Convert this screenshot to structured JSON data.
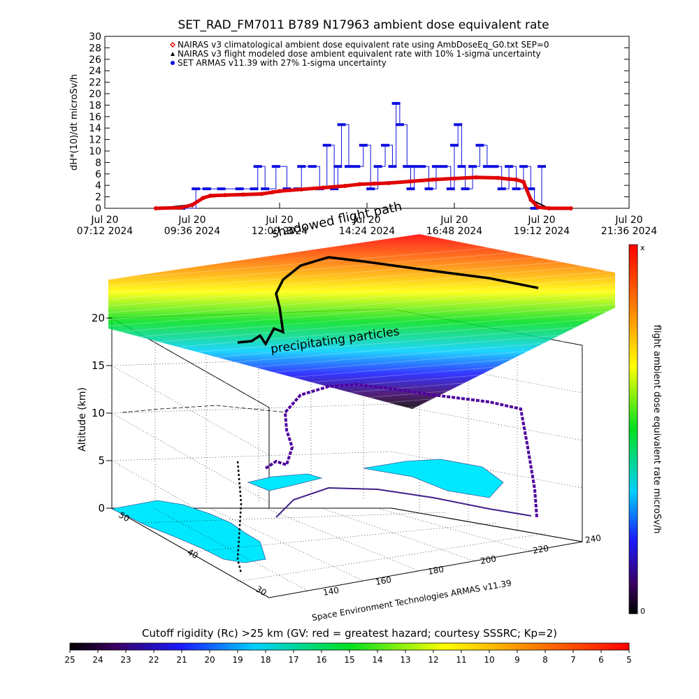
{
  "title": "SET_RAD_FM7011   B789 N17963 ambient dose equivalent rate",
  "top_chart": {
    "ylabel": "dH*(10)/dt microSv/h",
    "yticks": [
      "0",
      "2",
      "4",
      "6",
      "8",
      "10",
      "12",
      "14",
      "16",
      "18",
      "20",
      "22",
      "24",
      "26",
      "28",
      "30"
    ],
    "xticks": [
      {
        "date": "Jul 20",
        "time": "07:12 2024"
      },
      {
        "date": "Jul 20",
        "time": "09:36 2024"
      },
      {
        "date": "Jul 20",
        "time": "12:00 2024"
      },
      {
        "date": "Jul 20",
        "time": "14:24 2024"
      },
      {
        "date": "Jul 20",
        "time": "16:48 2024"
      },
      {
        "date": "Jul 20",
        "time": "19:12 2024"
      },
      {
        "date": "Jul 20",
        "time": "21:36 2024"
      }
    ],
    "legend": [
      {
        "text": "NAIRAS v3 climatological ambient dose equivalent rate using AmbDoseEq_G0.txt SEP=0",
        "color": "#e00000",
        "marker": "diamond"
      },
      {
        "text": "NAIRAS v3 flight modeled dose ambient equivalent rate with 10% 1-sigma uncertainty",
        "color": "#000000",
        "marker": "triangle"
      },
      {
        "text": "SET ARMAS v11.39 with 27% 1-sigma uncertainty",
        "color": "#1010e0",
        "marker": "circle"
      }
    ]
  },
  "chart_data": [
    {
      "type": "line",
      "title": "SET_RAD_FM7011   B789 N17963 ambient dose equivalent rate",
      "xlabel": "",
      "ylabel": "dH*(10)/dt microSv/h",
      "x_unit": "hours UTC, Jul 20 2024",
      "xlim": [
        7.2,
        21.6
      ],
      "ylim": [
        0,
        30
      ],
      "grid": false,
      "legend_position": "top",
      "series": [
        {
          "name": "NAIRAS v3 climatological ambient dose equivalent rate using AmbDoseEq_G0.txt SEP=0",
          "color": "#e00000",
          "x": [
            8.6,
            9.3,
            9.6,
            9.9,
            10.1,
            10.5,
            11.0,
            11.5,
            11.8,
            12.0,
            12.6,
            13.2,
            13.8,
            14.2,
            14.6,
            15.0,
            15.6,
            16.2,
            16.8,
            17.4,
            18.0,
            18.3,
            18.5,
            18.7,
            18.9,
            19.1,
            19.4,
            20.0
          ],
          "y": [
            0.0,
            0.1,
            0.6,
            1.8,
            2.2,
            2.3,
            2.4,
            2.5,
            2.8,
            3.0,
            3.3,
            3.6,
            3.9,
            4.2,
            4.3,
            4.4,
            4.7,
            5.0,
            5.2,
            5.4,
            5.3,
            5.1,
            5.0,
            4.6,
            1.5,
            0.2,
            0.0,
            0.0
          ]
        },
        {
          "name": "NAIRAS v3 flight modeled dose ambient equivalent rate with 10% 1-sigma uncertainty",
          "color": "#000000",
          "x": [
            8.6,
            9.6,
            9.9,
            10.5,
            11.5,
            12.0,
            13.2,
            14.2,
            14.6,
            15.6,
            16.8,
            18.0,
            18.5,
            18.7,
            18.9,
            19.4,
            20.0
          ],
          "y": [
            0.0,
            0.6,
            1.8,
            2.3,
            2.5,
            3.0,
            3.6,
            4.2,
            4.4,
            4.7,
            5.2,
            5.3,
            5.0,
            4.6,
            1.5,
            0.0,
            0.0
          ]
        },
        {
          "name": "SET ARMAS v11.39 with 27% 1-sigma uncertainty",
          "color": "#1010e0",
          "x": [
            9.3,
            9.7,
            10.0,
            10.4,
            10.9,
            11.3,
            11.4,
            11.6,
            11.9,
            12.2,
            12.5,
            12.6,
            12.9,
            13.1,
            13.3,
            13.5,
            13.6,
            13.7,
            13.9,
            14.1,
            14.3,
            14.5,
            14.7,
            14.9,
            15.1,
            15.2,
            15.3,
            15.5,
            15.6,
            15.7,
            15.9,
            16.1,
            16.3,
            16.5,
            16.7,
            16.8,
            16.9,
            17.0,
            17.1,
            17.3,
            17.5,
            17.7,
            17.9,
            18.1,
            18.3,
            18.5,
            18.7,
            18.9,
            19.0,
            19.2
          ],
          "y": [
            0.0,
            3.4,
            3.4,
            3.4,
            3.4,
            3.4,
            7.3,
            3.4,
            7.3,
            3.4,
            3.4,
            7.3,
            7.3,
            3.4,
            11.0,
            3.4,
            7.3,
            14.6,
            7.3,
            7.3,
            11.0,
            3.4,
            7.3,
            11.0,
            7.3,
            18.3,
            14.6,
            7.3,
            3.4,
            7.3,
            7.3,
            3.4,
            7.3,
            7.3,
            3.4,
            11.0,
            14.6,
            7.3,
            3.4,
            7.3,
            11.0,
            7.3,
            7.3,
            3.4,
            7.3,
            3.4,
            7.3,
            3.4,
            0.0,
            7.3
          ]
        }
      ]
    },
    {
      "type": "scatter",
      "title": "",
      "xlabel": "Space Environment Technologies ARMAS v11.39",
      "ylabel": "Altitude (km)",
      "zlabel": "",
      "lon_ticks": [
        "140",
        "160",
        "180",
        "200",
        "220",
        "240"
      ],
      "lat_ticks": [
        "30",
        "40",
        "50"
      ],
      "alt_ticks": [
        "0",
        "5",
        "10",
        "15",
        "20"
      ],
      "xlim": [
        130,
        240
      ],
      "zlim": [
        0,
        22
      ],
      "annotations": [
        "shadowed flight path",
        "precipitating particles"
      ],
      "colorbar": {
        "label": "flight ambient dose equivalent rate microSv/h",
        "min_label": "0",
        "max_label": "x"
      },
      "flight_track": {
        "lon": [
          150,
          152,
          155,
          158,
          162,
          166,
          170,
          175,
          180,
          185,
          190,
          195,
          200,
          205,
          210,
          215,
          220
        ],
        "lat": [
          50,
          52,
          54,
          56,
          57,
          58,
          58,
          58,
          57,
          56,
          54,
          52,
          50,
          47,
          44,
          40,
          36
        ],
        "alt_km": [
          0,
          6,
          10,
          11,
          12,
          12,
          12.2,
          12,
          12,
          12,
          12,
          11.8,
          11.6,
          11,
          10,
          5,
          0
        ]
      }
    },
    {
      "type": "heatmap",
      "title": "Cutoff rigidity (Rc) >25 km (GV: red = greatest hazard; courtesy SSSRC; Kp=2)",
      "xlabel": "Cutoff rigidity (Rc) >25 km (GV: red = greatest hazard; courtesy SSSRC; Kp=2)",
      "ticks": [
        "25",
        "24",
        "23",
        "22",
        "21",
        "20",
        "19",
        "18",
        "17",
        "16",
        "15",
        "14",
        "13",
        "12",
        "11",
        "10",
        "9",
        "8",
        "7",
        "6",
        "5"
      ]
    }
  ],
  "scene": {
    "shadow_label": "shadowed flight path",
    "particles_label": "precipitating particles",
    "alt_label": "Altitude (km)",
    "alt_ticks": [
      "0",
      "5",
      "10",
      "15",
      "20"
    ],
    "lon_ticks": [
      "140",
      "160",
      "180",
      "200",
      "220",
      "240"
    ],
    "lat_ticks": [
      "30",
      "40",
      "50"
    ],
    "footer": "Space Environment Technologies ARMAS v11.39",
    "cb_label": "flight ambient dose equivalent rate microSv/h",
    "cb_max": "x",
    "cb_min": "0"
  },
  "rigidity": {
    "title": "Cutoff rigidity (Rc) >25 km (GV: red = greatest hazard; courtesy SSSRC; Kp=2)",
    "ticks": [
      "25",
      "24",
      "23",
      "22",
      "21",
      "20",
      "19",
      "18",
      "17",
      "16",
      "15",
      "14",
      "13",
      "12",
      "11",
      "10",
      "9",
      "8",
      "7",
      "6",
      "5"
    ]
  }
}
